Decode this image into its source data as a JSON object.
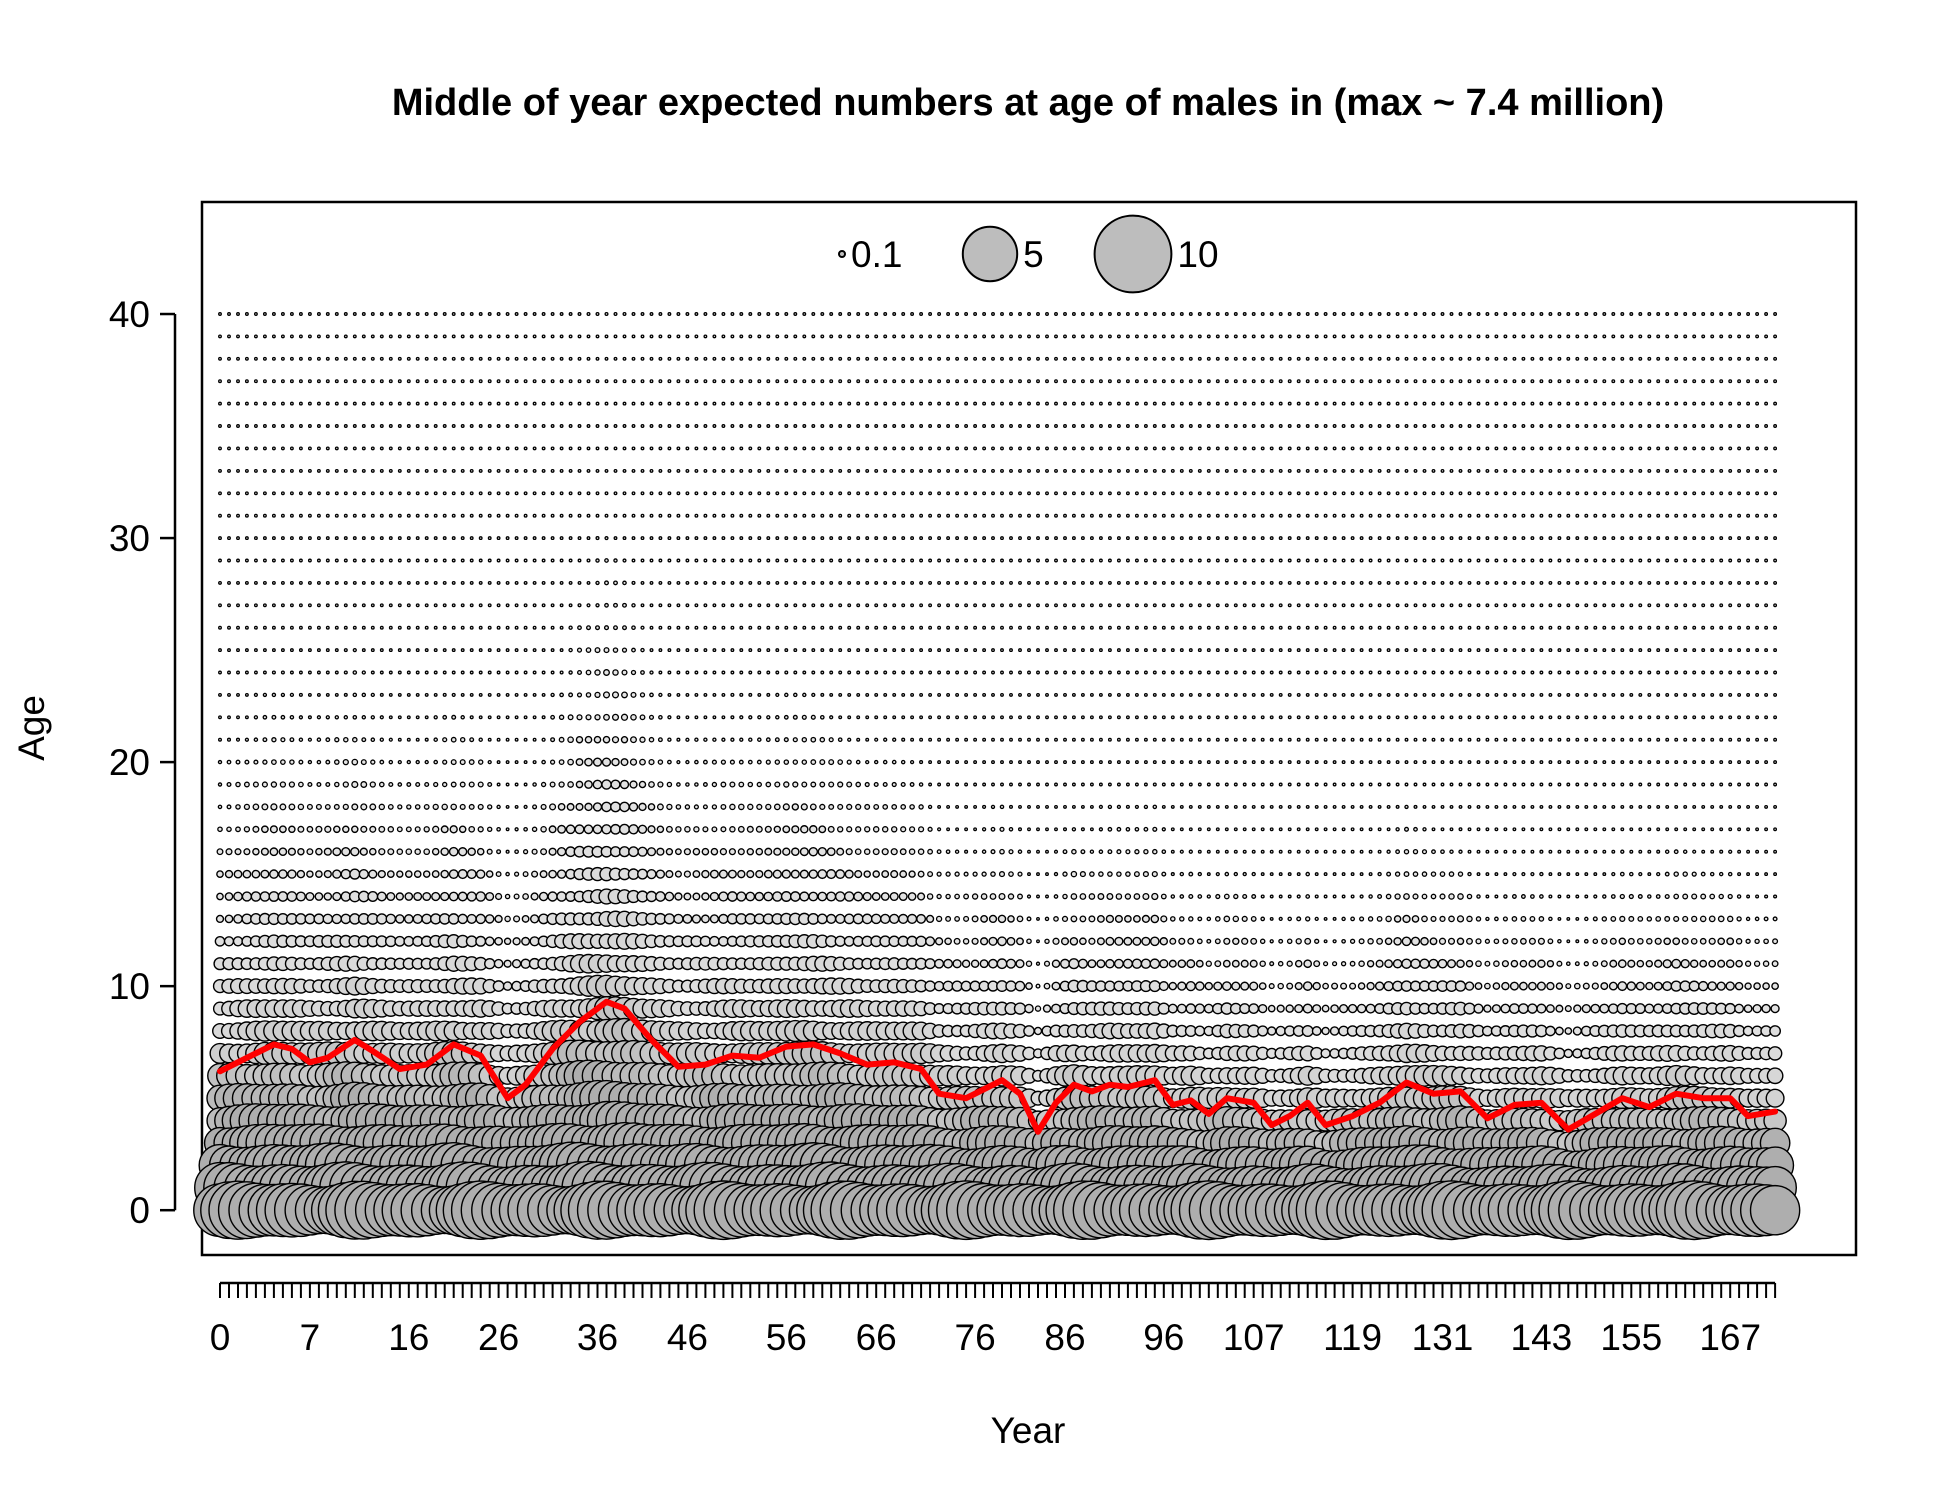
{
  "chart_data": {
    "type": "bubble",
    "title": "Middle of year expected numbers at age of males in (max ~ 7.4 million)",
    "xlabel": "Year",
    "ylabel": "Age",
    "xlim": [
      -2,
      182
    ],
    "ylim": [
      -2,
      45
    ],
    "x_tick_labels": [
      "0",
      "7",
      "16",
      "26",
      "36",
      "46",
      "56",
      "66",
      "76",
      "86",
      "96",
      "107",
      "119",
      "131",
      "143",
      "155",
      "167"
    ],
    "y_ticks": [
      0,
      10,
      20,
      30,
      40
    ],
    "years": [
      0,
      173
    ],
    "ages": [
      0,
      40
    ],
    "legend": {
      "placement": "top-center",
      "entries": [
        {
          "label": "0.1",
          "value": 0.1
        },
        {
          "label": "5",
          "value": 5
        },
        {
          "label": "10",
          "value": 10
        }
      ]
    },
    "mean_age_line": {
      "color": "#ff0000",
      "points": [
        [
          0,
          6.2
        ],
        [
          3,
          6.8
        ],
        [
          6,
          7.4
        ],
        [
          8,
          7.2
        ],
        [
          10,
          6.6
        ],
        [
          12,
          6.8
        ],
        [
          15,
          7.6
        ],
        [
          17,
          7.1
        ],
        [
          20,
          6.3
        ],
        [
          23,
          6.5
        ],
        [
          26,
          7.4
        ],
        [
          29,
          6.9
        ],
        [
          32,
          5.0
        ],
        [
          34,
          5.6
        ],
        [
          37,
          7.2
        ],
        [
          40,
          8.4
        ],
        [
          43,
          9.3
        ],
        [
          45,
          9.0
        ],
        [
          48,
          7.6
        ],
        [
          51,
          6.4
        ],
        [
          54,
          6.5
        ],
        [
          57,
          6.9
        ],
        [
          60,
          6.8
        ],
        [
          63,
          7.3
        ],
        [
          66,
          7.4
        ],
        [
          69,
          7.0
        ],
        [
          72,
          6.5
        ],
        [
          75,
          6.6
        ],
        [
          78,
          6.3
        ],
        [
          80,
          5.2
        ],
        [
          83,
          5.0
        ],
        [
          85,
          5.4
        ],
        [
          87,
          5.8
        ],
        [
          89,
          5.2
        ],
        [
          91,
          3.5
        ],
        [
          93,
          4.8
        ],
        [
          95,
          5.6
        ],
        [
          97,
          5.3
        ],
        [
          99,
          5.6
        ],
        [
          101,
          5.5
        ],
        [
          104,
          5.8
        ],
        [
          106,
          4.7
        ],
        [
          108,
          4.9
        ],
        [
          110,
          4.3
        ],
        [
          112,
          5.0
        ],
        [
          115,
          4.8
        ],
        [
          117,
          3.8
        ],
        [
          119,
          4.2
        ],
        [
          121,
          4.8
        ],
        [
          123,
          3.8
        ],
        [
          126,
          4.2
        ],
        [
          129,
          4.8
        ],
        [
          132,
          5.7
        ],
        [
          135,
          5.2
        ],
        [
          138,
          5.3
        ],
        [
          141,
          4.1
        ],
        [
          144,
          4.7
        ],
        [
          147,
          4.8
        ],
        [
          150,
          3.6
        ],
        [
          153,
          4.3
        ],
        [
          156,
          5.0
        ],
        [
          159,
          4.6
        ],
        [
          162,
          5.2
        ],
        [
          165,
          5.0
        ],
        [
          168,
          5.0
        ],
        [
          170,
          4.2
        ],
        [
          173,
          4.4
        ]
      ]
    }
  }
}
